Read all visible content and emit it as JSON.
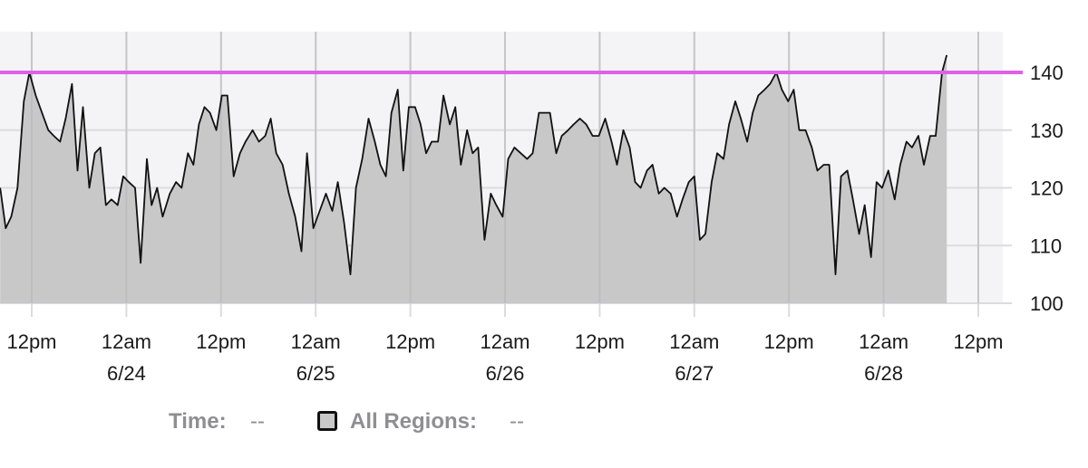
{
  "chart_data": {
    "type": "area",
    "ylim": [
      100,
      145
    ],
    "grid": true,
    "y_ticks": [
      100,
      110,
      120,
      130,
      140
    ],
    "reference_line": {
      "y": 140,
      "color": "#e060e8"
    },
    "x_ticks": [
      {
        "hour": 12,
        "label": "12pm",
        "sub": ""
      },
      {
        "hour": 24,
        "label": "12am",
        "sub": "6/24"
      },
      {
        "hour": 36,
        "label": "12pm",
        "sub": ""
      },
      {
        "hour": 48,
        "label": "12am",
        "sub": "6/25"
      },
      {
        "hour": 60,
        "label": "12pm",
        "sub": ""
      },
      {
        "hour": 72,
        "label": "12am",
        "sub": "6/26"
      },
      {
        "hour": 84,
        "label": "12pm",
        "sub": ""
      },
      {
        "hour": 96,
        "label": "12am",
        "sub": "6/27"
      },
      {
        "hour": 108,
        "label": "12pm",
        "sub": ""
      },
      {
        "hour": 120,
        "label": "12am",
        "sub": "6/28"
      },
      {
        "hour": 132,
        "label": "12pm",
        "sub": ""
      }
    ],
    "series": [
      {
        "fill": "#c8c8c9",
        "stroke": "#111111",
        "points": [
          [
            8.0,
            120
          ],
          [
            8.7,
            113
          ],
          [
            9.4,
            115
          ],
          [
            10.2,
            120
          ],
          [
            11.0,
            135
          ],
          [
            11.7,
            140
          ],
          [
            12.5,
            136
          ],
          [
            13.3,
            133
          ],
          [
            14.1,
            130
          ],
          [
            14.8,
            129
          ],
          [
            15.6,
            128
          ],
          [
            16.3,
            132
          ],
          [
            17.1,
            138
          ],
          [
            17.8,
            123
          ],
          [
            18.5,
            134
          ],
          [
            19.3,
            120
          ],
          [
            20.0,
            126
          ],
          [
            20.7,
            127
          ],
          [
            21.4,
            117
          ],
          [
            22.1,
            118
          ],
          [
            22.9,
            117
          ],
          [
            23.6,
            122
          ],
          [
            24.3,
            121
          ],
          [
            25.1,
            120
          ],
          [
            25.8,
            107
          ],
          [
            26.6,
            125
          ],
          [
            27.2,
            117
          ],
          [
            27.9,
            120
          ],
          [
            28.6,
            115
          ],
          [
            29.5,
            119
          ],
          [
            30.3,
            121
          ],
          [
            31.0,
            120
          ],
          [
            31.8,
            126
          ],
          [
            32.5,
            124
          ],
          [
            33.2,
            131
          ],
          [
            33.9,
            134
          ],
          [
            34.6,
            133
          ],
          [
            35.4,
            130
          ],
          [
            36.1,
            136
          ],
          [
            36.8,
            136
          ],
          [
            37.6,
            122
          ],
          [
            38.4,
            126
          ],
          [
            39.1,
            128
          ],
          [
            40.0,
            130
          ],
          [
            40.8,
            128
          ],
          [
            41.6,
            129
          ],
          [
            42.3,
            132
          ],
          [
            43.0,
            126
          ],
          [
            43.8,
            124
          ],
          [
            44.6,
            119
          ],
          [
            45.4,
            115
          ],
          [
            46.2,
            109
          ],
          [
            46.9,
            126
          ],
          [
            47.7,
            113
          ],
          [
            48.5,
            116
          ],
          [
            49.3,
            119
          ],
          [
            50.1,
            116
          ],
          [
            50.8,
            121
          ],
          [
            51.6,
            114
          ],
          [
            52.4,
            105
          ],
          [
            53.1,
            120
          ],
          [
            53.9,
            125
          ],
          [
            54.7,
            132
          ],
          [
            55.5,
            128
          ],
          [
            56.2,
            124
          ],
          [
            56.9,
            122
          ],
          [
            57.6,
            133
          ],
          [
            58.4,
            137
          ],
          [
            59.1,
            123
          ],
          [
            59.8,
            134
          ],
          [
            60.6,
            134
          ],
          [
            61.3,
            131
          ],
          [
            62.0,
            126
          ],
          [
            62.7,
            128
          ],
          [
            63.5,
            128
          ],
          [
            64.2,
            136
          ],
          [
            65.0,
            131
          ],
          [
            65.7,
            134
          ],
          [
            66.4,
            124
          ],
          [
            67.2,
            130
          ],
          [
            67.9,
            126
          ],
          [
            68.6,
            127
          ],
          [
            69.4,
            111
          ],
          [
            70.2,
            119
          ],
          [
            70.9,
            117
          ],
          [
            71.7,
            115
          ],
          [
            72.4,
            125
          ],
          [
            73.2,
            127
          ],
          [
            74.0,
            126
          ],
          [
            74.8,
            125
          ],
          [
            75.5,
            126
          ],
          [
            76.3,
            133
          ],
          [
            77.0,
            133
          ],
          [
            77.7,
            133
          ],
          [
            78.5,
            126
          ],
          [
            79.2,
            129
          ],
          [
            80.0,
            130
          ],
          [
            80.7,
            131
          ],
          [
            81.5,
            132
          ],
          [
            82.3,
            131
          ],
          [
            83.1,
            129
          ],
          [
            83.9,
            129
          ],
          [
            84.7,
            132
          ],
          [
            85.5,
            128
          ],
          [
            86.2,
            124
          ],
          [
            87.0,
            130
          ],
          [
            87.8,
            127
          ],
          [
            88.5,
            121
          ],
          [
            89.2,
            120
          ],
          [
            90.0,
            123
          ],
          [
            90.7,
            124
          ],
          [
            91.5,
            119
          ],
          [
            92.2,
            120
          ],
          [
            93.0,
            119
          ],
          [
            93.8,
            115
          ],
          [
            94.5,
            118
          ],
          [
            95.3,
            121
          ],
          [
            96.0,
            122
          ],
          [
            96.7,
            111
          ],
          [
            97.4,
            112
          ],
          [
            98.2,
            121
          ],
          [
            98.9,
            126
          ],
          [
            99.7,
            125
          ],
          [
            100.4,
            131
          ],
          [
            101.2,
            135
          ],
          [
            101.9,
            132
          ],
          [
            102.7,
            128
          ],
          [
            103.4,
            133
          ],
          [
            104.1,
            136
          ],
          [
            104.9,
            137
          ],
          [
            105.6,
            138
          ],
          [
            106.4,
            140
          ],
          [
            107.1,
            137
          ],
          [
            107.9,
            135
          ],
          [
            108.6,
            137
          ],
          [
            109.3,
            130
          ],
          [
            110.1,
            130
          ],
          [
            110.9,
            127
          ],
          [
            111.6,
            123
          ],
          [
            112.4,
            124
          ],
          [
            113.1,
            124
          ],
          [
            113.9,
            105
          ],
          [
            114.6,
            122
          ],
          [
            115.4,
            123
          ],
          [
            116.1,
            118
          ],
          [
            116.9,
            112
          ],
          [
            117.6,
            117
          ],
          [
            118.4,
            108
          ],
          [
            119.1,
            121
          ],
          [
            119.8,
            120
          ],
          [
            120.6,
            123
          ],
          [
            121.4,
            118
          ],
          [
            122.1,
            124
          ],
          [
            122.9,
            128
          ],
          [
            123.6,
            127
          ],
          [
            124.4,
            129
          ],
          [
            125.1,
            124
          ],
          [
            125.9,
            129
          ],
          [
            126.6,
            129
          ],
          [
            127.4,
            140
          ],
          [
            128.0,
            143
          ]
        ]
      }
    ]
  },
  "legend": {
    "time_label": "Time:",
    "time_value": "--",
    "series_label": "All Regions:",
    "series_value": "--"
  },
  "colors": {
    "plot_background": "#f4f4f6",
    "grid": "#dcdce0",
    "tick_text": "#1a1a1a",
    "legend_text": "#8e8e93"
  }
}
